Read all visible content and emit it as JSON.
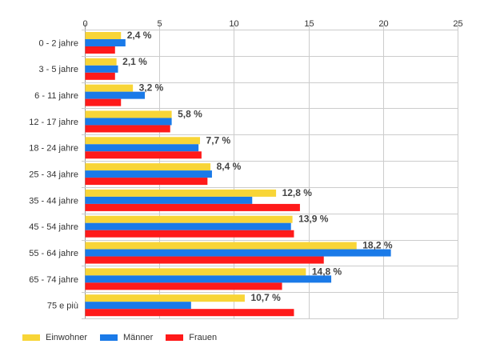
{
  "chart_data": {
    "type": "bar",
    "orientation": "horizontal",
    "categories": [
      "0 - 2 jahre",
      "3 - 5 jahre",
      "6 - 11 jahre",
      "12 - 17 jahre",
      "18 - 24 jahre",
      "25 - 34 jahre",
      "35 - 44 jahre",
      "45 - 54 jahre",
      "55 - 64 jahre",
      "65 - 74 jahre",
      "75 e più"
    ],
    "series": [
      {
        "name": "Einwohner",
        "color": "#f8d537",
        "values": [
          2.4,
          2.1,
          3.2,
          5.8,
          7.7,
          8.4,
          12.8,
          13.9,
          18.2,
          14.8,
          10.7
        ]
      },
      {
        "name": "Männer",
        "color": "#1a7ae8",
        "values": [
          2.7,
          2.2,
          4.0,
          5.8,
          7.6,
          8.5,
          11.2,
          13.8,
          20.5,
          16.5,
          7.1
        ]
      },
      {
        "name": "Frauen",
        "color": "#ff1a1a",
        "values": [
          2.0,
          2.0,
          2.4,
          5.7,
          7.8,
          8.2,
          14.4,
          14.0,
          16.0,
          13.2,
          14.0
        ]
      }
    ],
    "data_labels": [
      "2,4 %",
      "2,1 %",
      "3,2 %",
      "5,8 %",
      "7,7 %",
      "8,4 %",
      "12,8 %",
      "13,9 %",
      "18,2 %",
      "14,8 %",
      "10,7 %"
    ],
    "x_ticks": [
      0,
      5,
      10,
      15,
      20,
      25
    ],
    "xlim": [
      0,
      25
    ],
    "axis_position": "top",
    "grid": true,
    "legend_position": "bottom-left",
    "title": "",
    "xlabel": "",
    "ylabel": ""
  }
}
